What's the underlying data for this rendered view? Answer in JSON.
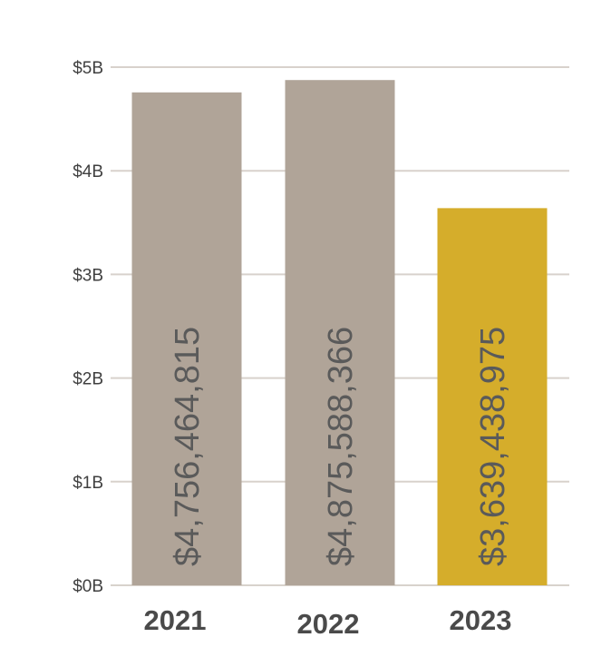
{
  "chart_data": {
    "type": "bar",
    "title": "",
    "xlabel": "",
    "ylabel": "",
    "ylim": [
      0,
      5000000000
    ],
    "yticks": [
      0,
      1000000000,
      2000000000,
      3000000000,
      4000000000,
      5000000000
    ],
    "ytick_labels": [
      "$0B",
      "$1B",
      "$2B",
      "$3B",
      "$4B",
      "$5B"
    ],
    "grid": true,
    "categories": [
      "2021",
      "2022",
      "2023"
    ],
    "values": [
      4756464815,
      4875588366,
      3639438975
    ],
    "data_labels": [
      "$4,756,464,815",
      "$4,875,588,366",
      "$3,639,438,975"
    ],
    "colors": [
      "#b0a498",
      "#b0a498",
      "#d5ad2b"
    ]
  },
  "colors": {
    "gridline": "#d8d2cc",
    "tick_text": "#3f3f3f",
    "category_text": "#4a4a4a",
    "bar_label_text": "#5a5a5a"
  }
}
